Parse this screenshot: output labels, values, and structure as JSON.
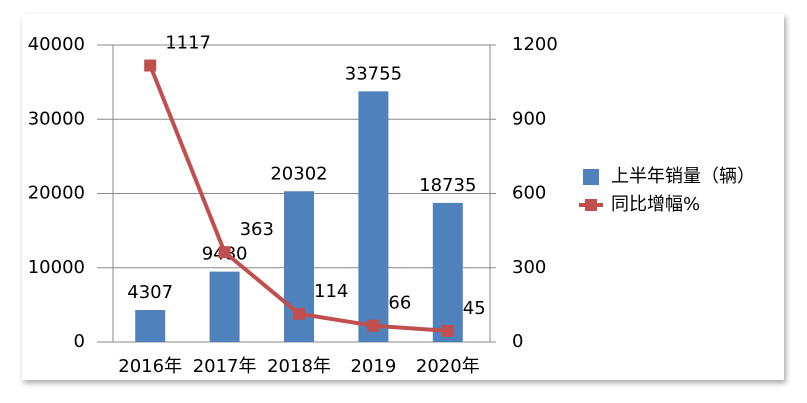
{
  "chart_data": {
    "type": "combo",
    "categories": [
      "2016年",
      "2017年",
      "2018年",
      "2019",
      "2020年"
    ],
    "series": [
      {
        "name": "上半年销量（辆）",
        "type": "bar",
        "color": "#4f81bd",
        "values": [
          4307,
          9480,
          20302,
          33755,
          18735
        ]
      },
      {
        "name": "同比增幅%",
        "type": "line",
        "axis": "y2",
        "color": "#c0504d",
        "values": [
          1117,
          363,
          114,
          66,
          45
        ]
      }
    ],
    "ylim": [
      0,
      40000
    ],
    "yticks": [
      0,
      10000,
      20000,
      30000,
      40000
    ],
    "y2lim": [
      0,
      1200
    ],
    "y2ticks": [
      0,
      300,
      600,
      900,
      1200
    ],
    "grid": true,
    "legend": "right"
  }
}
